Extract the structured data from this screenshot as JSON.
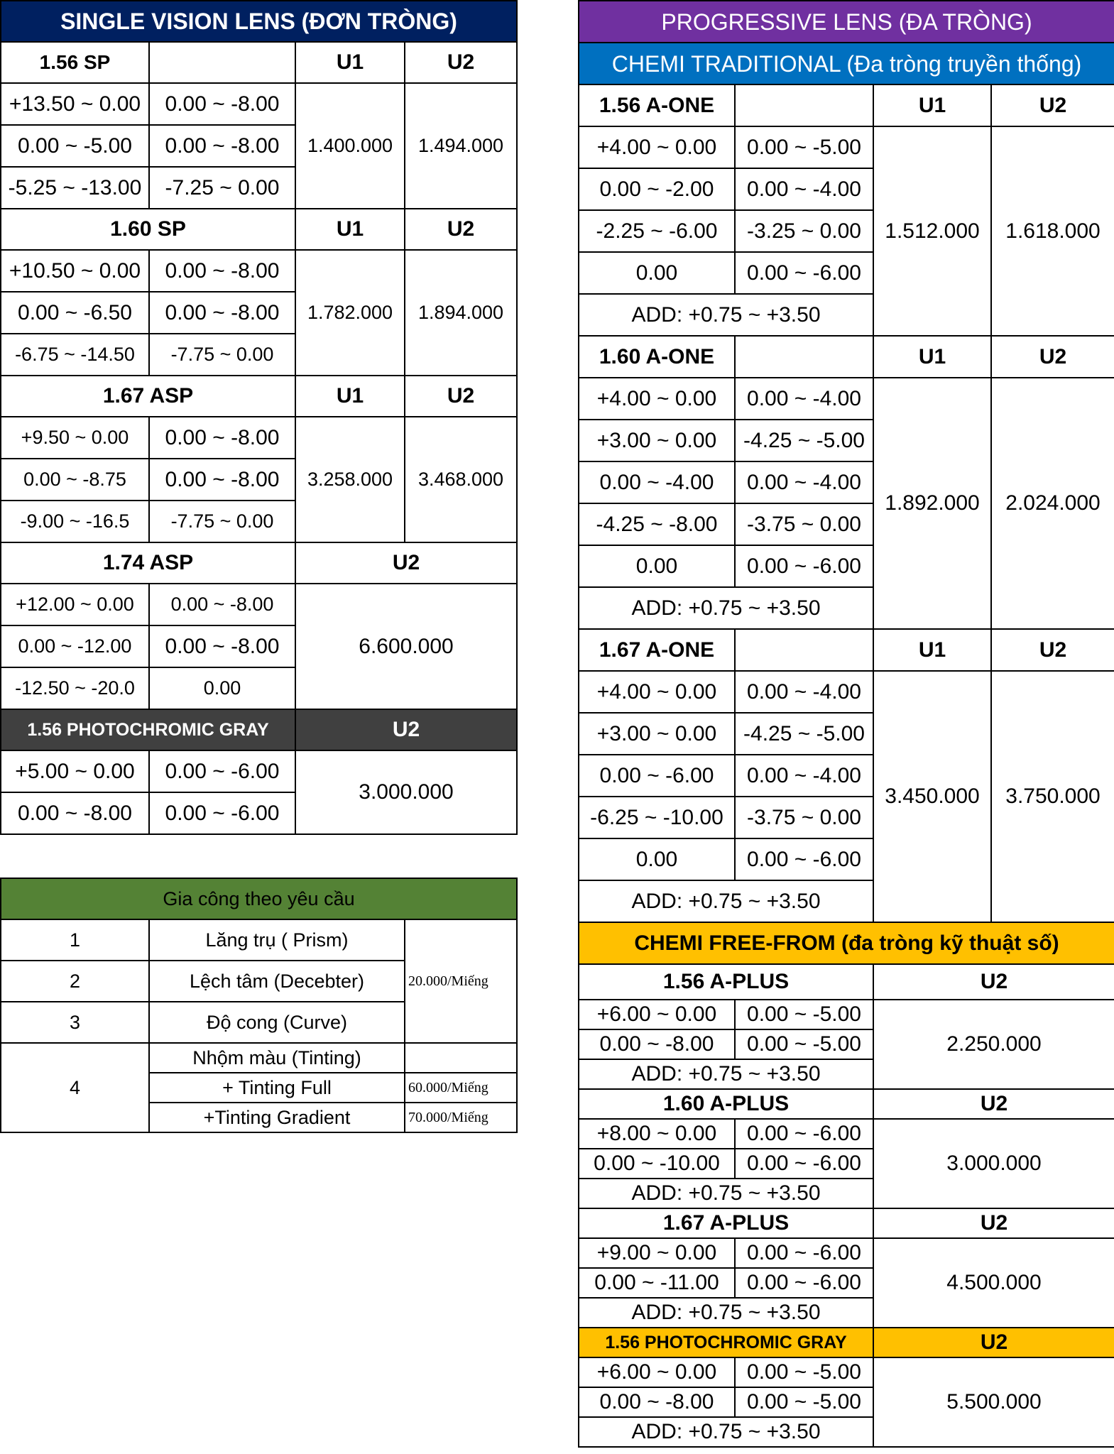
{
  "single_vision": {
    "title": "SINGLE VISION LENS (ĐƠN TRÒNG)",
    "u1": "U1",
    "u2": "U2",
    "groups": [
      {
        "name": "1.56 SP",
        "rows": [
          [
            "+13.50 ~ 0.00",
            "0.00 ~ -8.00"
          ],
          [
            "0.00 ~ -5.00",
            "0.00 ~ -8.00"
          ],
          [
            "-5.25 ~ -13.00",
            "-7.25 ~ 0.00"
          ]
        ],
        "price_u1": "1.400.000",
        "price_u2": "1.494.000"
      },
      {
        "name": "1.60 SP",
        "rows": [
          [
            "+10.50 ~ 0.00",
            "0.00 ~ -8.00"
          ],
          [
            "0.00 ~ -6.50",
            "0.00 ~ -8.00"
          ],
          [
            "-6.75 ~ -14.50",
            "-7.75 ~ 0.00"
          ]
        ],
        "price_u1": "1.782.000",
        "price_u2": "1.894.000"
      },
      {
        "name": "1.67 ASP",
        "rows": [
          [
            "+9.50 ~ 0.00",
            "0.00 ~ -8.00"
          ],
          [
            "0.00 ~ -8.75",
            "0.00 ~ -8.00"
          ],
          [
            "-9.00 ~ -16.5",
            "-7.75 ~ 0.00"
          ]
        ],
        "price_u1": "3.258.000",
        "price_u2": "3.468.000"
      },
      {
        "name": "1.74 ASP",
        "rows": [
          [
            "+12.00 ~ 0.00",
            "0.00 ~ -8.00"
          ],
          [
            "0.00 ~ -12.00",
            "0.00 ~ -8.00"
          ],
          [
            "-12.50 ~ -20.0",
            "0.00"
          ]
        ],
        "price_u2": "6.600.000"
      },
      {
        "name": "1.56 PHOTOCHROMIC GRAY",
        "rows": [
          [
            "+5.00 ~ 0.00",
            "0.00 ~ -6.00"
          ],
          [
            "0.00 ~ -8.00",
            "0.00 ~ -6.00"
          ]
        ],
        "price_u2": "3.000.000"
      }
    ]
  },
  "services": {
    "title": "Gia công theo yêu cầu",
    "items": [
      {
        "no": "1",
        "name": "Lăng trụ ( Prism)"
      },
      {
        "no": "2",
        "name": "Lệch tâm (Decebter)"
      },
      {
        "no": "3",
        "name": "Độ cong (Curve)"
      },
      {
        "no": "4",
        "name": "Nhộm màu (Tinting)"
      }
    ],
    "shared_price": "20.000/Miếng",
    "tinting_options": [
      {
        "name": "+ Tinting Full",
        "price": "60.000/Miếng"
      },
      {
        "name": "+Tinting Gradient",
        "price": "70.000/Miếng"
      }
    ]
  },
  "progressive": {
    "title": "PROGRESSIVE LENS (ĐA TRÒNG)",
    "traditional_title": "CHEMI TRADITIONAL (Đa tròng truyền thống)",
    "u1": "U1",
    "u2": "U2",
    "traditional": [
      {
        "name": "1.56 A-ONE",
        "rows": [
          [
            "+4.00 ~ 0.00",
            "0.00 ~ -5.00"
          ],
          [
            "0.00 ~ -2.00",
            "0.00 ~ -4.00"
          ],
          [
            "-2.25 ~ -6.00",
            "-3.25 ~ 0.00"
          ],
          [
            "0.00",
            "0.00 ~ -6.00"
          ]
        ],
        "add": "ADD: +0.75 ~ +3.50",
        "price_u1": "1.512.000",
        "price_u2": "1.618.000"
      },
      {
        "name": "1.60 A-ONE",
        "rows": [
          [
            "+4.00 ~ 0.00",
            "0.00 ~ -4.00"
          ],
          [
            "+3.00 ~ 0.00",
            "-4.25 ~ -5.00"
          ],
          [
            "0.00 ~ -4.00",
            "0.00 ~ -4.00"
          ],
          [
            "-4.25 ~ -8.00",
            "-3.75 ~ 0.00"
          ],
          [
            "0.00",
            "0.00 ~ -6.00"
          ]
        ],
        "add": "ADD: +0.75 ~ +3.50",
        "price_u1": "1.892.000",
        "price_u2": "2.024.000"
      },
      {
        "name": "1.67 A-ONE",
        "rows": [
          [
            "+4.00 ~ 0.00",
            "0.00 ~ -4.00"
          ],
          [
            "+3.00 ~ 0.00",
            "-4.25 ~ -5.00"
          ],
          [
            "0.00 ~ -6.00",
            "0.00 ~ -4.00"
          ],
          [
            "-6.25 ~ -10.00",
            "-3.75 ~ 0.00"
          ],
          [
            "0.00",
            "0.00 ~ -6.00"
          ]
        ],
        "add": "ADD: +0.75 ~ +3.50",
        "price_u1": "3.450.000",
        "price_u2": "3.750.000"
      }
    ],
    "freeform_title": "CHEMI FREE-FROM (đa tròng kỹ thuật số)",
    "freeform": [
      {
        "name": "1.56 A-PLUS",
        "rows": [
          [
            "+6.00 ~ 0.00",
            "0.00 ~ -5.00"
          ],
          [
            "0.00 ~ -8.00",
            "0.00 ~ -5.00"
          ]
        ],
        "add": "ADD: +0.75 ~ +3.50",
        "price_u2": "2.250.000"
      },
      {
        "name": "1.60 A-PLUS",
        "rows": [
          [
            "+8.00 ~ 0.00",
            "0.00 ~ -6.00"
          ],
          [
            "0.00 ~ -10.00",
            "0.00 ~ -6.00"
          ]
        ],
        "add": "ADD: +0.75 ~ +3.50",
        "price_u2": "3.000.000"
      },
      {
        "name": "1.67 A-PLUS",
        "rows": [
          [
            "+9.00 ~ 0.00",
            "0.00 ~ -6.00"
          ],
          [
            "0.00 ~ -11.00",
            "0.00 ~ -6.00"
          ]
        ],
        "add": "ADD: +0.75 ~ +3.50",
        "price_u2": "4.500.000"
      },
      {
        "name": "1.56 PHOTOCHROMIC GRAY",
        "rows": [
          [
            "+6.00 ~ 0.00",
            "0.00 ~ -5.00"
          ],
          [
            "0.00 ~ -8.00",
            "0.00 ~ -5.00"
          ]
        ],
        "add": "ADD: +0.75 ~ +3.50",
        "price_u2": "5.500.000"
      }
    ]
  },
  "colors": {
    "navy": "#002060",
    "purple": "#7030a0",
    "blue": "#0070c0",
    "yellow": "#ffc000",
    "green": "#548235",
    "dark_gray": "#404040"
  }
}
